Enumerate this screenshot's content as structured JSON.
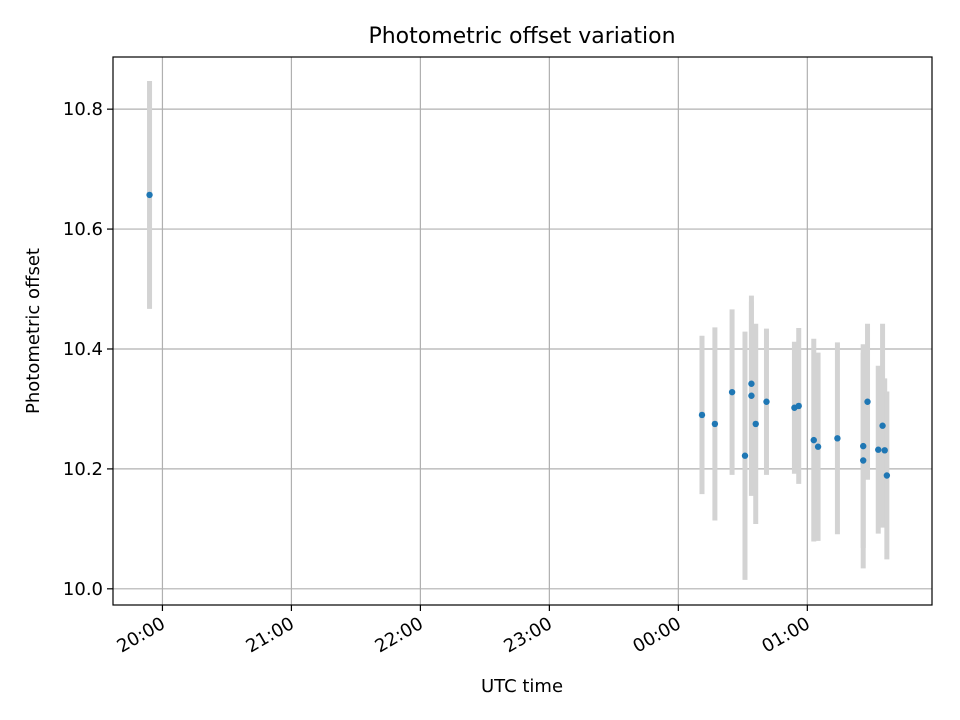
{
  "chart_data": {
    "type": "scatter",
    "title": "Photometric offset variation",
    "xlabel": "UTC time",
    "ylabel": "Photometric offset",
    "x_axis_kind": "time",
    "x_ticks": [
      "20:00",
      "21:00",
      "22:00",
      "23:00",
      "00:00",
      "01:00"
    ],
    "y_ticks": [
      "10.0",
      "10.2",
      "10.4",
      "10.6",
      "10.8"
    ],
    "xlim": [
      "19:37",
      "01:58"
    ],
    "ylim": [
      9.973,
      10.887
    ],
    "grid": true,
    "point_color": "#1f77b4",
    "errorbar_color": "#d3d3d3",
    "series": [
      {
        "x": [
          "19:54",
          "00:11",
          "00:17",
          "00:25",
          "00:31",
          "00:34",
          "00:34",
          "00:36",
          "00:41",
          "00:54",
          "00:56",
          "01:03",
          "01:05",
          "01:14",
          "01:26",
          "01:26",
          "01:28",
          "01:33",
          "01:35",
          "01:36",
          "01:37"
        ],
        "y": [
          10.657,
          10.29,
          10.275,
          10.328,
          10.222,
          10.342,
          10.322,
          10.275,
          10.312,
          10.302,
          10.305,
          10.248,
          10.237,
          10.251,
          10.214,
          10.238,
          10.312,
          10.232,
          10.272,
          10.231,
          10.189
        ],
        "yerr": [
          0.19,
          0.132,
          0.161,
          0.138,
          0.207,
          0.137,
          0.167,
          0.167,
          0.122,
          0.11,
          0.13,
          0.169,
          0.157,
          0.16,
          0.18,
          0.17,
          0.13,
          0.14,
          0.17,
          0.12,
          0.14
        ]
      }
    ]
  }
}
